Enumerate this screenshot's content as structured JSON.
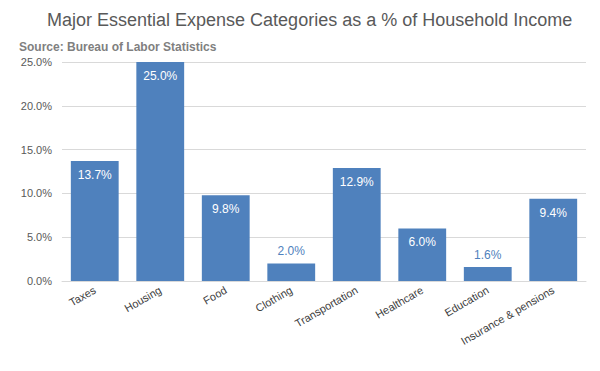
{
  "chart_data": {
    "type": "bar",
    "title": "Major Essential Expense Categories as a % of Household Income",
    "subtitle": "Source: Bureau of Labor Statistics",
    "categories": [
      "Taxes",
      "Housing",
      "Food",
      "Clothing",
      "Transportation",
      "Healthcare",
      "Education",
      "Insurance & pensions"
    ],
    "values": [
      13.7,
      25.0,
      9.8,
      2.0,
      12.9,
      6.0,
      1.6,
      9.4
    ],
    "value_labels": [
      "13.7%",
      "25.0%",
      "9.8%",
      "2.0%",
      "12.9%",
      "6.0%",
      "1.6%",
      "9.4%"
    ],
    "color": "#4f81bd",
    "ylim": [
      0,
      25
    ],
    "yticks": [
      {
        "value": 0,
        "label": "0.0%"
      },
      {
        "value": 5,
        "label": "5.0%"
      },
      {
        "value": 10,
        "label": "10.0%"
      },
      {
        "value": 15,
        "label": "15.0%"
      },
      {
        "value": 20,
        "label": "20.0%"
      },
      {
        "value": 25,
        "label": "25.0%"
      }
    ],
    "grid": true,
    "data_labels": true
  }
}
